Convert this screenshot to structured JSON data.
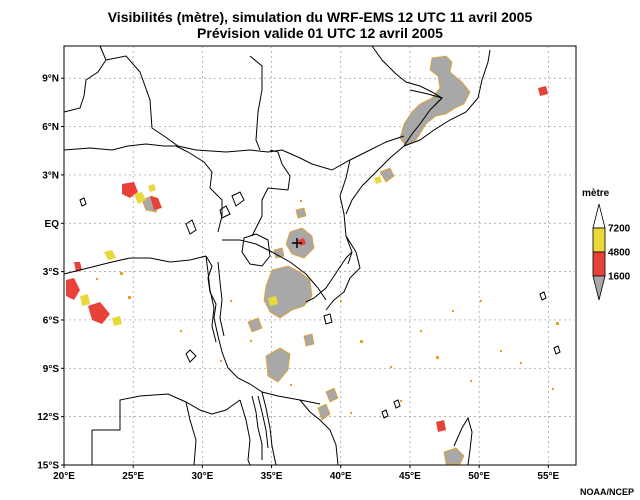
{
  "title_line1": "Visibilités (mètre), simulation du WRF-EMS 12 UTC 11 avril 2005",
  "title_line2": "Prévision valide 01 UTC 12 avril 2005",
  "map": {
    "lon_range": [
      20,
      57
    ],
    "lat_range": [
      -15,
      11
    ],
    "lat_ticks": [
      {
        "value": 9,
        "label": "9°N"
      },
      {
        "value": 6,
        "label": "6°N"
      },
      {
        "value": 3,
        "label": "3°N"
      },
      {
        "value": 0,
        "label": "EQ"
      },
      {
        "value": -3,
        "label": "3°S"
      },
      {
        "value": -6,
        "label": "6°S"
      },
      {
        "value": -9,
        "label": "9°S"
      },
      {
        "value": -12,
        "label": "12°S"
      },
      {
        "value": -15,
        "label": "15°S"
      }
    ],
    "lon_ticks": [
      {
        "value": 20,
        "label": "20°E"
      },
      {
        "value": 25,
        "label": "25°E"
      },
      {
        "value": 30,
        "label": "30°E"
      },
      {
        "value": 35,
        "label": "35°E"
      },
      {
        "value": 40,
        "label": "40°E"
      },
      {
        "value": 45,
        "label": "45°E"
      },
      {
        "value": 50,
        "label": "50°E"
      },
      {
        "value": 55,
        "label": "55°E"
      }
    ],
    "grid": true,
    "marker_symbol": "+"
  },
  "legend": {
    "title": "mètre",
    "levels": [
      "7200",
      "4800",
      "1600"
    ],
    "colors": [
      "#ffffff",
      "#e8d83a",
      "#e8413a",
      "#a8a8a8"
    ]
  },
  "credit": "NOAA/NCEP"
}
